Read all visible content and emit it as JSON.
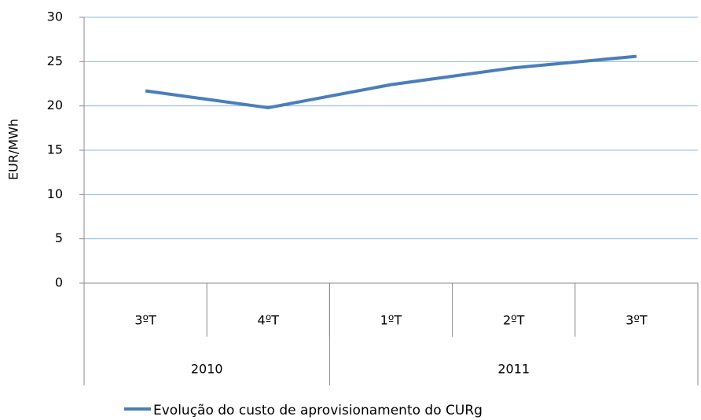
{
  "chart_data": {
    "type": "line",
    "categories": [
      "3ºT",
      "4ºT",
      "1ºT",
      "2ºT",
      "3ºT"
    ],
    "category_groups": [
      {
        "label": "2010",
        "count": 2
      },
      {
        "label": "2011",
        "count": 3
      }
    ],
    "series": [
      {
        "name": "Evolução do custo de aprovisionamento do CURg",
        "color": "#4a7ebb",
        "values": [
          21.7,
          19.8,
          22.4,
          24.3,
          25.6
        ]
      }
    ],
    "y_label": "EUR/MWh",
    "ylim": [
      0,
      30
    ],
    "yticks": [
      0,
      5,
      10,
      15,
      20,
      25,
      30
    ],
    "grid": true
  }
}
